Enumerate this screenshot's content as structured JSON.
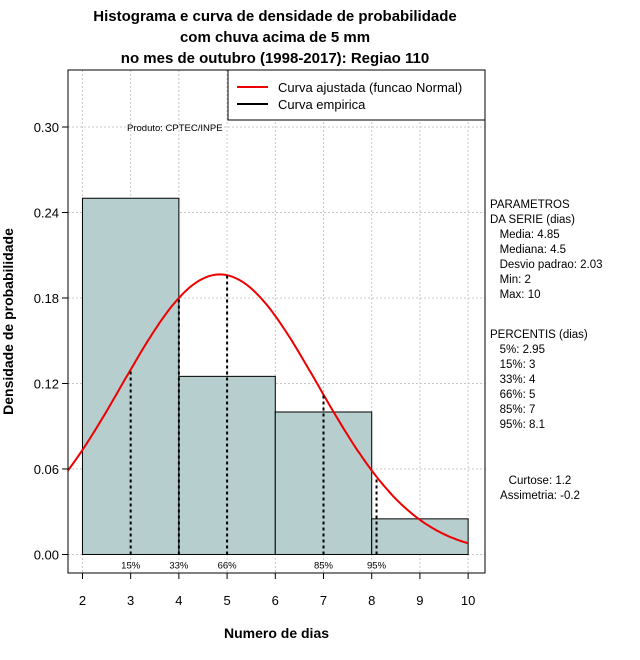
{
  "chart_data": {
    "type": "bar",
    "title_lines": [
      "Histograma e curva de densidade de probabilidade",
      "com chuva acima de 5 mm",
      "no mes de outubro (1998-2017): Regiao 110"
    ],
    "xlabel": "Numero de dias",
    "ylabel": "Densidade de probabilidade",
    "xlim": [
      1.7,
      10.35
    ],
    "ylim": [
      -0.013,
      0.34
    ],
    "x_ticks": [
      2,
      3,
      4,
      5,
      6,
      7,
      8,
      9,
      10
    ],
    "y_ticks": [
      0.0,
      0.06,
      0.12,
      0.18,
      0.24,
      0.3
    ],
    "y_tick_labels": [
      "0.00",
      "0.06",
      "0.12",
      "0.18",
      "0.24",
      "0.30"
    ],
    "bins": [
      {
        "from": 2,
        "to": 4,
        "density": 0.25
      },
      {
        "from": 4,
        "to": 6,
        "density": 0.125
      },
      {
        "from": 6,
        "to": 8,
        "density": 0.1
      },
      {
        "from": 8,
        "to": 10,
        "density": 0.025
      }
    ],
    "normal_fit": {
      "mean": 4.85,
      "sd": 2.03,
      "color": "#ee0000"
    },
    "percentile_markers": [
      {
        "x": 3,
        "label": "15%"
      },
      {
        "x": 4,
        "label": "33%"
      },
      {
        "x": 5,
        "label": "66%"
      },
      {
        "x": 7,
        "label": "85%"
      },
      {
        "x": 8.1,
        "label": "95%"
      }
    ],
    "legend": [
      {
        "label": "Curva ajustada (funcao Normal)",
        "color": "#ee0000"
      },
      {
        "label": "Curva empirica",
        "color": "#000000"
      }
    ],
    "legend_position": "top-right",
    "credit": "Produto: CPTEC/INPE",
    "bar_color": "#b7cece",
    "grid": true
  },
  "side_panel": {
    "parameters_lines": [
      "PARAMETROS",
      "DA SERIE (dias)",
      "   Media: 4.85",
      "   Mediana: 4.5",
      "   Desvio padrao: 2.03",
      "   Min: 2",
      "   Max: 10"
    ],
    "percentis_lines": [
      "PERCENTIS (dias)",
      "   5%: 2.95",
      "   15%: 3",
      "   33%: 4",
      "   66%: 5",
      "   85%: 7",
      "   95%: 8.1"
    ],
    "shape_lines": [
      "Curtose: 1.2",
      "Assimetria: -0.2"
    ]
  }
}
